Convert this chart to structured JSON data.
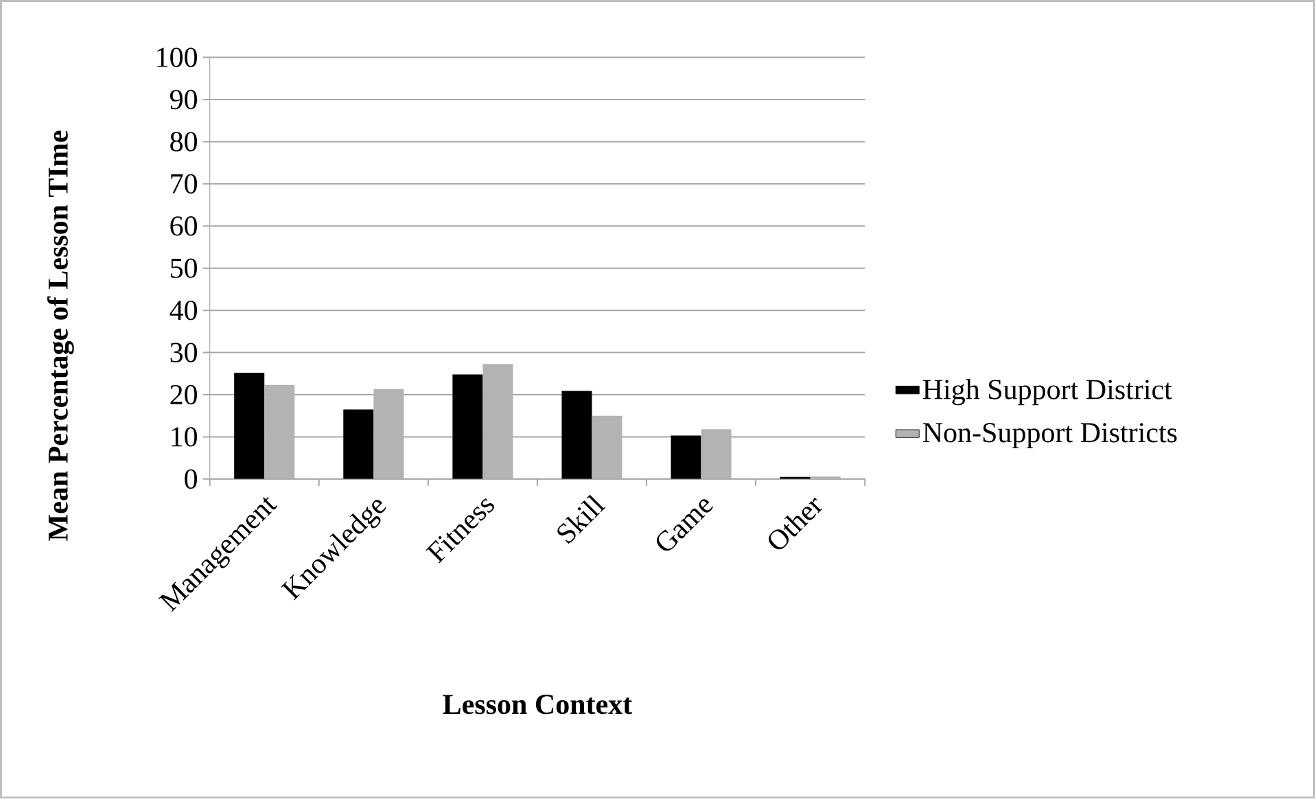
{
  "chart_data": {
    "type": "bar",
    "xlabel": "Lesson Context",
    "ylabel": "Mean Percentage of Lesson TIme",
    "categories": [
      "Management",
      "Knowledge",
      "Fitness",
      "Skill",
      "Game",
      "Other"
    ],
    "series": [
      {
        "name": "High Support District",
        "color": "#000000",
        "values": [
          25.2,
          16.5,
          24.8,
          20.9,
          10.3,
          0.5
        ]
      },
      {
        "name": "Non-Support Districts",
        "color": "#b3b3b3",
        "values": [
          22.3,
          21.3,
          27.3,
          15.0,
          11.8,
          0.6
        ]
      }
    ],
    "ylim": [
      0,
      100
    ],
    "yticks": [
      0,
      10,
      20,
      30,
      40,
      50,
      60,
      70,
      80,
      90,
      100
    ],
    "grid": "y",
    "legend": "right"
  }
}
